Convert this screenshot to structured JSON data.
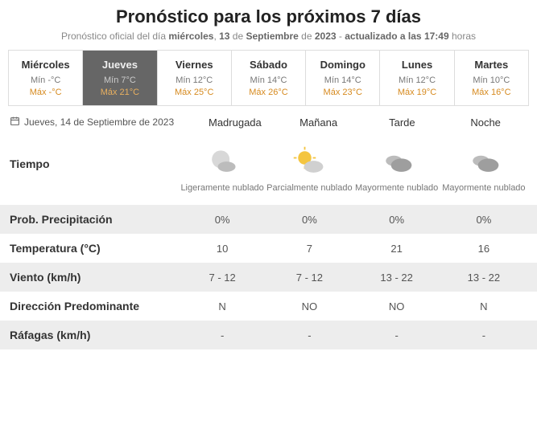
{
  "title": "Pronóstico para los próximos 7 días",
  "subtitle": {
    "prefix": "Pronóstico oficial del día ",
    "day_name": "miércoles",
    "sep1": ", ",
    "day_num": "13",
    "sep2": " de ",
    "month": "Septiembre",
    "sep3": " de ",
    "year": "2023",
    "sep4": " - ",
    "updated_label": "actualizado a las ",
    "time": "17:49",
    "suffix": " horas"
  },
  "tabs": [
    {
      "day": "Miércoles",
      "min": "Mín -°C",
      "max": "Máx -°C",
      "active": false
    },
    {
      "day": "Jueves",
      "min": "Mín 7°C",
      "max": "Máx 21°C",
      "active": true
    },
    {
      "day": "Viernes",
      "min": "Mín 12°C",
      "max": "Máx 25°C",
      "active": false
    },
    {
      "day": "Sábado",
      "min": "Mín 14°C",
      "max": "Máx 26°C",
      "active": false
    },
    {
      "day": "Domingo",
      "min": "Mín 14°C",
      "max": "Máx 23°C",
      "active": false
    },
    {
      "day": "Lunes",
      "min": "Mín 12°C",
      "max": "Máx 19°C",
      "active": false
    },
    {
      "day": "Martes",
      "min": "Mín 10°C",
      "max": "Máx 16°C",
      "active": false
    }
  ],
  "selected_date": "Jueves, 14 de Septiembre de 2023",
  "periods": [
    "Madrugada",
    "Mañana",
    "Tarde",
    "Noche"
  ],
  "weather_row": {
    "label": "Tiempo",
    "cells": [
      {
        "icon": "lightly-cloudy-night",
        "desc": "Ligeramente nublado"
      },
      {
        "icon": "partly-cloudy-day",
        "desc": "Parcialmente nublado"
      },
      {
        "icon": "mostly-cloudy",
        "desc": "Mayormente nublado"
      },
      {
        "icon": "mostly-cloudy",
        "desc": "Mayormente nublado"
      }
    ]
  },
  "rows": [
    {
      "label": "Prob. Precipitación",
      "cells": [
        "0%",
        "0%",
        "0%",
        "0%"
      ],
      "stripe": true
    },
    {
      "label": "Temperatura (°C)",
      "cells": [
        "10",
        "7",
        "21",
        "16"
      ],
      "stripe": false
    },
    {
      "label": "Viento (km/h)",
      "cells": [
        "7 - 12",
        "7 - 12",
        "13 - 22",
        "13 - 22"
      ],
      "stripe": true
    },
    {
      "label": "Dirección Predominante",
      "cells": [
        "N",
        "NO",
        "NO",
        "N"
      ],
      "stripe": false
    },
    {
      "label": "Ráfagas (km/h)",
      "cells": [
        "-",
        "-",
        "-",
        "-"
      ],
      "stripe": true
    }
  ],
  "colors": {
    "max_color": "#d68a1f",
    "min_color": "#777",
    "active_bg": "#666",
    "stripe_bg": "#ededed"
  }
}
